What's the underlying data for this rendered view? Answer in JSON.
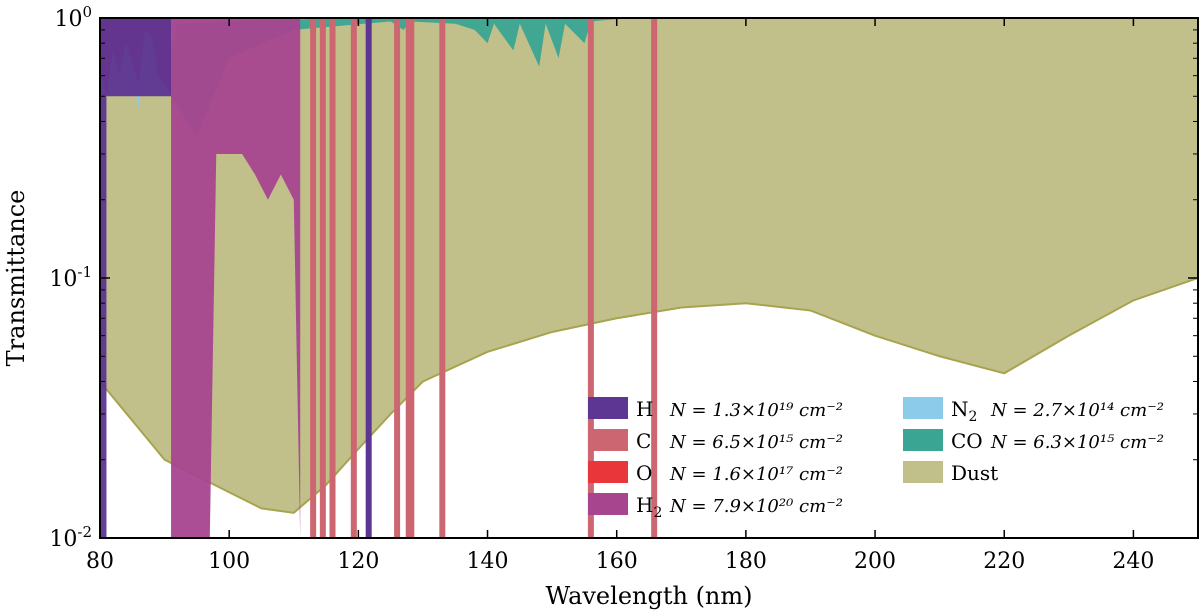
{
  "chart_data": {
    "type": "area",
    "xlabel": "Wavelength (nm)",
    "ylabel": "Transmittance",
    "yscale": "log",
    "xlim": [
      80,
      250
    ],
    "ylim": [
      0.01,
      1.0
    ],
    "xticks": [
      80,
      100,
      120,
      140,
      160,
      180,
      200,
      220,
      240
    ],
    "yticks": [
      {
        "value": 0.01,
        "base": "10",
        "exp": "-2"
      },
      {
        "value": 0.1,
        "base": "10",
        "exp": "-1"
      },
      {
        "value": 1.0,
        "base": "10",
        "exp": "0"
      }
    ],
    "series": [
      {
        "name": "Dust",
        "label": "Dust",
        "equation": "",
        "color": "#c2c08a",
        "edge": "#a6a44e",
        "points": [
          [
            80,
            0.04
          ],
          [
            90,
            0.02
          ],
          [
            100,
            0.015
          ],
          [
            105,
            0.013
          ],
          [
            110,
            0.0125
          ],
          [
            115,
            0.016
          ],
          [
            120,
            0.022
          ],
          [
            125,
            0.03
          ],
          [
            130,
            0.04
          ],
          [
            140,
            0.052
          ],
          [
            150,
            0.062
          ],
          [
            160,
            0.07
          ],
          [
            170,
            0.077
          ],
          [
            180,
            0.08
          ],
          [
            190,
            0.075
          ],
          [
            200,
            0.06
          ],
          [
            210,
            0.05
          ],
          [
            220,
            0.043
          ],
          [
            230,
            0.06
          ],
          [
            240,
            0.082
          ],
          [
            250,
            0.1
          ]
        ]
      },
      {
        "name": "CO",
        "label": "CO",
        "equation": "N = 6.3×10¹⁵ cm⁻²",
        "color": "#3aa593",
        "edge": "#3aa593",
        "points": [
          [
            91,
            0.5
          ],
          [
            95,
            0.35
          ],
          [
            100,
            0.7
          ],
          [
            110,
            0.9
          ],
          [
            125,
            0.97
          ],
          [
            127,
            0.9
          ],
          [
            128,
            0.97
          ],
          [
            135,
            0.95
          ],
          [
            138,
            0.9
          ],
          [
            140,
            0.8
          ],
          [
            141,
            0.95
          ],
          [
            144,
            0.75
          ],
          [
            145,
            0.95
          ],
          [
            148,
            0.65
          ],
          [
            149,
            0.95
          ],
          [
            151,
            0.7
          ],
          [
            152,
            0.95
          ],
          [
            155,
            0.8
          ],
          [
            156,
            0.97
          ],
          [
            160,
            0.99
          ],
          [
            170,
            1.0
          ]
        ],
        "note": "CO absorption band dips near 128–156 nm"
      },
      {
        "name": "N2",
        "label": "N",
        "sub": "2",
        "equation": "N = 2.7×10¹⁴ cm⁻²",
        "color": "#8ccbea",
        "edge": "#8ccbea",
        "points": [
          [
            80,
            0.85
          ],
          [
            84,
            0.8
          ],
          [
            85,
            0.6
          ],
          [
            86,
            0.45
          ],
          [
            87,
            0.95
          ],
          [
            88,
            0.9
          ],
          [
            90,
            0.6
          ],
          [
            92,
            0.95
          ],
          [
            100,
            0.97
          ],
          [
            112,
            0.99
          ]
        ]
      },
      {
        "name": "O",
        "label": "O",
        "equation": "N = 1.6×10¹⁷ cm⁻²",
        "color": "#e8363a",
        "edge": "#e8363a",
        "points": [
          [
            80,
            0.65
          ],
          [
            81,
            0.5
          ],
          [
            82,
            0.75
          ],
          [
            83,
            0.6
          ],
          [
            84,
            0.8
          ],
          [
            86,
            0.55
          ],
          [
            87,
            0.9
          ],
          [
            88,
            0.85
          ],
          [
            89,
            0.6
          ],
          [
            90,
            0.55
          ],
          [
            91,
            0.5
          ]
        ]
      },
      {
        "name": "H2",
        "label": "H",
        "sub": "2",
        "equation": "N = 7.9×10²⁰ cm⁻²",
        "color": "#a8458f",
        "edge": "#a8458f",
        "points": [
          [
            91,
            0.01
          ],
          [
            97,
            0.01
          ],
          [
            98,
            0.3
          ],
          [
            102,
            0.3
          ],
          [
            104,
            0.25
          ],
          [
            106,
            0.2
          ],
          [
            108,
            0.25
          ],
          [
            110,
            0.2
          ],
          [
            111,
            0.01
          ]
        ]
      },
      {
        "name": "H",
        "label": "H",
        "equation": "N = 1.3×10¹⁹ cm⁻²",
        "color": "#5d3592",
        "edge": "#5d3592",
        "points": [
          [
            80,
            0.01
          ],
          [
            81,
            0.01
          ],
          [
            81,
            0.5
          ],
          [
            91,
            0.5
          ],
          [
            91,
            0.01
          ]
        ]
      },
      {
        "name": "C",
        "label": "C",
        "equation": "N = 6.5×10¹⁵ cm⁻²",
        "color": "#cc6670",
        "edge": "#cc6670",
        "lines_nm": [
          113.0,
          114.5,
          116.0,
          119.3,
          126.0,
          127.8,
          128.2,
          133.0,
          156.0,
          165.8
        ],
        "note": "C absorption lines reaching bottom of axis"
      }
    ],
    "h_lyman_alpha_nm": 121.6,
    "legend_position": "lower-right"
  }
}
